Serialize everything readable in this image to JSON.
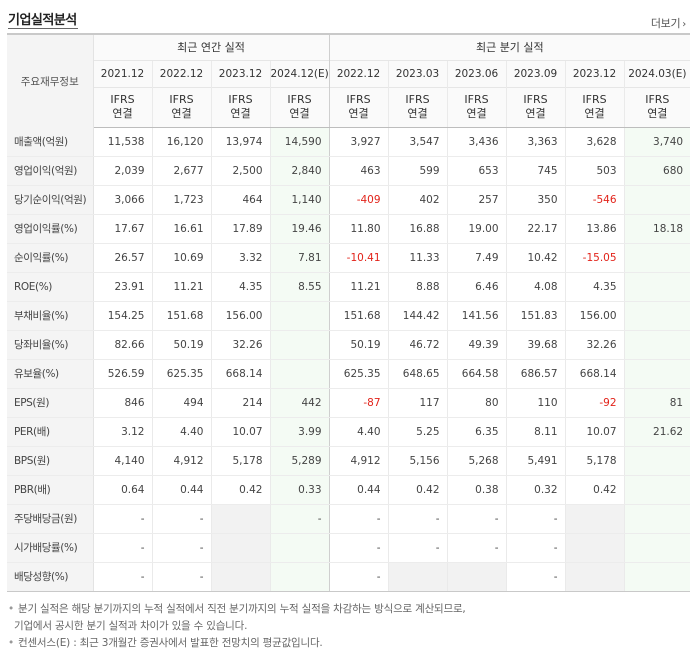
{
  "header": {
    "title": "기업실적분석",
    "more_label": "더보기",
    "more_icon": "›"
  },
  "table": {
    "label_header": "주요재무정보",
    "annual_group": "최근 연간 실적",
    "quarter_group": "최근 분기 실적",
    "annual_periods": [
      "2021.12",
      "2022.12",
      "2023.12",
      "2024.12(E)"
    ],
    "quarter_periods": [
      "2022.12",
      "2023.03",
      "2023.06",
      "2023.09",
      "2023.12",
      "2024.03(E)"
    ],
    "ifrs_top": "IFRS",
    "ifrs_bottom": "연결",
    "rows": [
      {
        "label": "매출액(억원)",
        "annual": [
          "11,538",
          "16,120",
          "13,974",
          "14,590"
        ],
        "quarter": [
          "3,927",
          "3,547",
          "3,436",
          "3,363",
          "3,628",
          "3,740"
        ]
      },
      {
        "label": "영업이익(억원)",
        "annual": [
          "2,039",
          "2,677",
          "2,500",
          "2,840"
        ],
        "quarter": [
          "463",
          "599",
          "653",
          "745",
          "503",
          "680"
        ]
      },
      {
        "label": "당기순이익(억원)",
        "annual": [
          "3,066",
          "1,723",
          "464",
          "1,140"
        ],
        "quarter": [
          "-409",
          "402",
          "257",
          "350",
          "-546",
          ""
        ]
      },
      {
        "label": "영업이익률(%)",
        "annual": [
          "17.67",
          "16.61",
          "17.89",
          "19.46"
        ],
        "quarter": [
          "11.80",
          "16.88",
          "19.00",
          "22.17",
          "13.86",
          "18.18"
        ]
      },
      {
        "label": "순이익률(%)",
        "annual": [
          "26.57",
          "10.69",
          "3.32",
          "7.81"
        ],
        "quarter": [
          "-10.41",
          "11.33",
          "7.49",
          "10.42",
          "-15.05",
          ""
        ]
      },
      {
        "label": "ROE(%)",
        "annual": [
          "23.91",
          "11.21",
          "4.35",
          "8.55"
        ],
        "quarter": [
          "11.21",
          "8.88",
          "6.46",
          "4.08",
          "4.35",
          ""
        ]
      },
      {
        "label": "부채비율(%)",
        "annual": [
          "154.25",
          "151.68",
          "156.00",
          ""
        ],
        "quarter": [
          "151.68",
          "144.42",
          "141.56",
          "151.83",
          "156.00",
          ""
        ]
      },
      {
        "label": "당좌비율(%)",
        "annual": [
          "82.66",
          "50.19",
          "32.26",
          ""
        ],
        "quarter": [
          "50.19",
          "46.72",
          "49.39",
          "39.68",
          "32.26",
          ""
        ]
      },
      {
        "label": "유보율(%)",
        "annual": [
          "526.59",
          "625.35",
          "668.14",
          ""
        ],
        "quarter": [
          "625.35",
          "648.65",
          "664.58",
          "686.57",
          "668.14",
          ""
        ]
      },
      {
        "label": "EPS(원)",
        "annual": [
          "846",
          "494",
          "214",
          "442"
        ],
        "quarter": [
          "-87",
          "117",
          "80",
          "110",
          "-92",
          "81"
        ]
      },
      {
        "label": "PER(배)",
        "annual": [
          "3.12",
          "4.40",
          "10.07",
          "3.99"
        ],
        "quarter": [
          "4.40",
          "5.25",
          "6.35",
          "8.11",
          "10.07",
          "21.62"
        ]
      },
      {
        "label": "BPS(원)",
        "annual": [
          "4,140",
          "4,912",
          "5,178",
          "5,289"
        ],
        "quarter": [
          "4,912",
          "5,156",
          "5,268",
          "5,491",
          "5,178",
          ""
        ]
      },
      {
        "label": "PBR(배)",
        "annual": [
          "0.64",
          "0.44",
          "0.42",
          "0.33"
        ],
        "quarter": [
          "0.44",
          "0.42",
          "0.38",
          "0.32",
          "0.42",
          ""
        ]
      },
      {
        "label": "주당배당금(원)",
        "annual": [
          "-",
          "-",
          "",
          "-"
        ],
        "quarter": [
          "-",
          "-",
          "-",
          "-",
          "",
          ""
        ]
      },
      {
        "label": "시가배당률(%)",
        "annual": [
          "-",
          "-",
          "",
          ""
        ],
        "quarter": [
          "-",
          "-",
          "-",
          "-",
          "",
          ""
        ]
      },
      {
        "label": "배당성향(%)",
        "annual": [
          "-",
          "-",
          "",
          ""
        ],
        "quarter": [
          "-",
          "",
          "",
          "-",
          "",
          ""
        ]
      }
    ]
  },
  "notes": {
    "bullet": "•",
    "line1": "분기 실적은 해당 분기까지의 누적 실적에서 직전 분기까지의 누적 실적을 차감하는 방식으로 계산되므로,",
    "line1b": "기업에서 공시한 분기 실적과 차이가 있을 수 있습니다.",
    "line2": "컨센서스(E) : 최근 3개월간 증권사에서 발표한 전망치의 평균값입니다."
  }
}
